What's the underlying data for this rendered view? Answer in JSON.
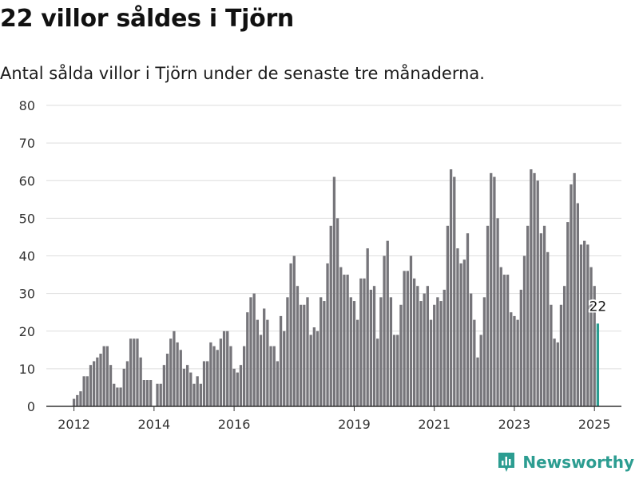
{
  "title": "22 villor såldes i Tjörn",
  "subtitle": "Antal sålda villor i Tjörn under de senaste tre månaderna.",
  "brand": {
    "name": "Newsworthy",
    "icon": "bar-chart-logo-icon"
  },
  "colors": {
    "bar": "#76757a",
    "highlight": "#2c9d91",
    "grid": "#dddddd",
    "axis": "#333333",
    "text": "#333333",
    "brand": "#2c9d91"
  },
  "chart_data": {
    "type": "bar",
    "ylim": [
      0,
      80
    ],
    "yticks": [
      0,
      10,
      20,
      30,
      40,
      50,
      60,
      70,
      80
    ],
    "xticks": [
      "2012",
      "2014",
      "2016",
      "2019",
      "2021",
      "2023",
      "2025"
    ],
    "grid": true,
    "start": "2012-01",
    "series": [
      {
        "values": [
          2,
          3,
          4,
          8,
          8,
          11,
          12,
          13,
          14,
          16,
          16,
          11,
          6,
          5,
          5,
          10,
          12,
          18,
          18,
          18,
          13,
          7,
          7,
          7,
          0,
          6,
          6,
          11,
          14,
          18,
          20,
          17,
          15,
          10,
          11,
          9,
          6,
          8,
          6,
          12,
          12,
          17,
          16,
          15,
          18,
          20,
          20,
          16,
          10,
          9,
          11,
          16,
          25,
          29,
          30,
          23,
          19,
          26,
          23,
          16,
          16,
          12,
          24,
          20,
          29,
          38,
          40,
          32,
          27,
          27,
          29,
          19,
          21,
          20,
          29,
          28,
          38,
          48,
          61,
          50,
          37,
          35,
          35,
          29,
          28,
          23,
          34,
          34,
          42,
          31,
          32,
          18,
          29,
          40,
          44,
          29,
          19,
          19,
          27,
          36,
          36,
          40,
          34,
          32,
          28,
          30,
          32,
          23,
          27,
          29,
          28,
          31,
          48,
          63,
          61,
          42,
          38,
          39,
          46,
          30,
          23,
          13,
          19,
          29,
          48,
          62,
          61,
          50,
          37,
          35,
          35,
          25,
          24,
          23,
          31,
          40,
          48,
          63,
          62,
          60,
          46,
          48,
          41,
          27,
          18,
          17,
          27,
          32,
          49,
          59,
          62,
          54,
          43,
          44,
          43,
          37,
          32,
          22
        ]
      }
    ],
    "annotation": {
      "label": "22",
      "value": 22
    }
  }
}
